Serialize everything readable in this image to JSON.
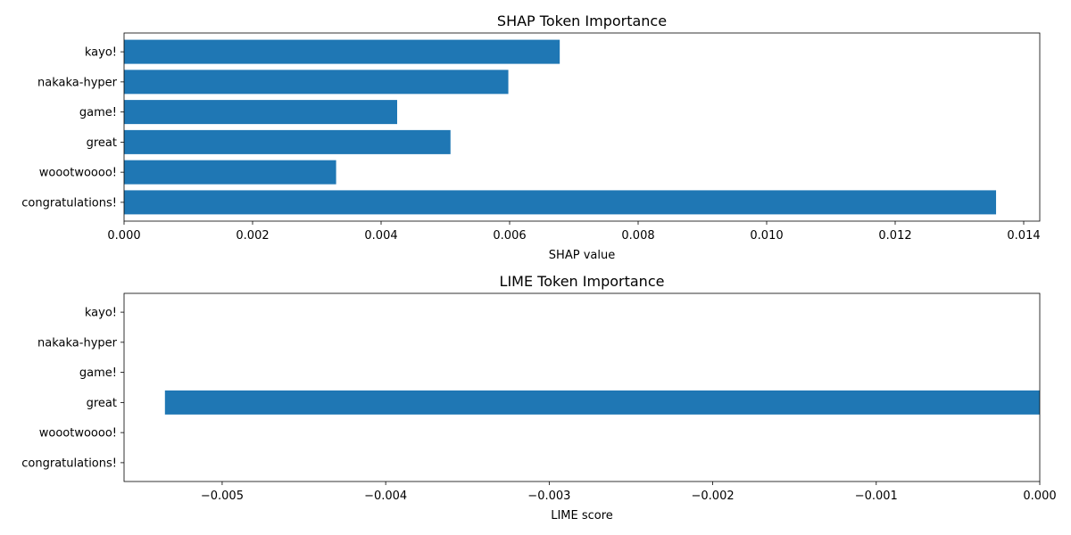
{
  "chart_data": [
    {
      "type": "bar",
      "orientation": "horizontal",
      "title": "SHAP Token Importance",
      "xlabel": "SHAP value",
      "ylabel": "",
      "categories": [
        "kayo!",
        "nakaka-hyper",
        "game!",
        "great",
        "woootwoooo!",
        "congratulations!"
      ],
      "values": [
        0.00678,
        0.00598,
        0.00425,
        0.00508,
        0.0033,
        0.01357
      ],
      "xlim": [
        0,
        0.01425
      ],
      "xticks": [
        "0.000",
        "0.002",
        "0.004",
        "0.006",
        "0.008",
        "0.010",
        "0.012",
        "0.014"
      ],
      "grid": false,
      "color": "#1f77b4"
    },
    {
      "type": "bar",
      "orientation": "horizontal",
      "title": "LIME Token Importance",
      "xlabel": "LIME score",
      "ylabel": "",
      "categories": [
        "kayo!",
        "nakaka-hyper",
        "game!",
        "great",
        "woootwoooo!",
        "congratulations!"
      ],
      "values": [
        0,
        0,
        0,
        -0.00535,
        0,
        0
      ],
      "xlim": [
        -0.0056,
        0
      ],
      "xticks": [
        "−0.005",
        "−0.004",
        "−0.003",
        "−0.002",
        "−0.001",
        "0.000"
      ],
      "grid": false,
      "color": "#1f77b4"
    }
  ]
}
